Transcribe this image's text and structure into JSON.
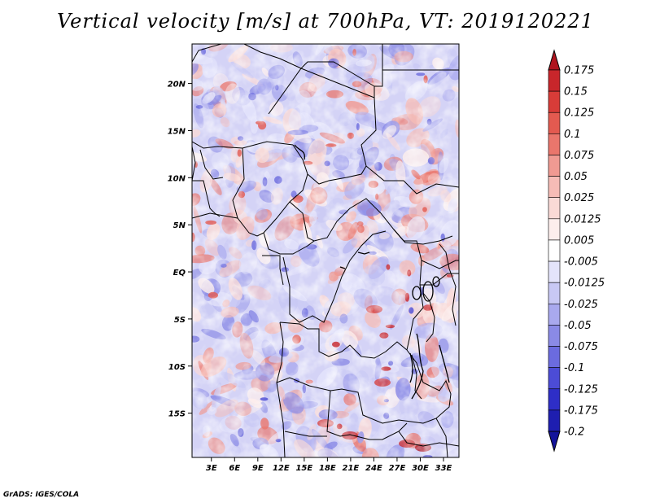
{
  "title": "Vertical velocity [m/s] at 700hPa, VT: 2019120221",
  "credit": "GrADS: IGES/COLA",
  "map": {
    "lat_ticks": [
      "20N",
      "15N",
      "10N",
      "5N",
      "EQ",
      "5S",
      "10S",
      "15S"
    ],
    "lat_values": [
      20,
      15,
      10,
      5,
      0,
      -5,
      -10,
      -15
    ],
    "lon_ticks": [
      "3E",
      "6E",
      "9E",
      "12E",
      "15E",
      "18E",
      "21E",
      "24E",
      "27E",
      "30E",
      "33E"
    ],
    "lon_values": [
      3,
      6,
      9,
      12,
      15,
      18,
      21,
      24,
      27,
      30,
      33
    ],
    "lon_range": [
      0.5,
      35
    ],
    "lat_range": [
      -19.7,
      24.2
    ]
  },
  "colorbar": {
    "levels": [
      "0.175",
      "0.15",
      "0.125",
      "0.1",
      "0.075",
      "0.05",
      "0.025",
      "0.0125",
      "0.005",
      "-0.005",
      "-0.0125",
      "-0.025",
      "-0.05",
      "-0.075",
      "-0.1",
      "-0.125",
      "-0.175",
      "-0.2"
    ],
    "colors": [
      "#b0141e",
      "#c8262b",
      "#d83c38",
      "#e35a50",
      "#ea766c",
      "#f09a92",
      "#f6bcb6",
      "#fadad6",
      "#fdeeec",
      "#ffffff",
      "#e4e4fb",
      "#c8c8f4",
      "#a9a9ee",
      "#8a8ae6",
      "#6b6bdf",
      "#4c4cd6",
      "#2e2ec7",
      "#1e1eb0",
      "#13139a"
    ]
  }
}
